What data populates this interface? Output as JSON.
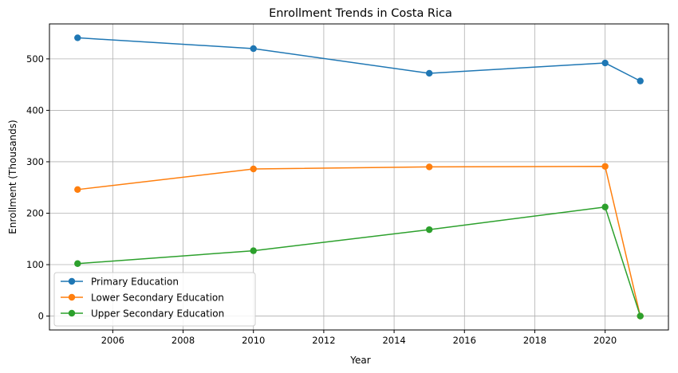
{
  "chart_data": {
    "type": "line",
    "title": "Enrollment Trends in Costa Rica",
    "xlabel": "Year",
    "ylabel": "Enrollment (Thousands)",
    "xlim": [
      2004.2,
      2021.8
    ],
    "ylim": [
      -27,
      568
    ],
    "xticks": [
      2006,
      2008,
      2010,
      2012,
      2014,
      2016,
      2018,
      2020
    ],
    "yticks": [
      0,
      100,
      200,
      300,
      400,
      500
    ],
    "grid": true,
    "legend_position": "lower-left",
    "x": [
      2005,
      2010,
      2015,
      2020,
      2021
    ],
    "series": [
      {
        "name": "Primary Education",
        "color": "#1f77b4",
        "values": [
          541,
          520,
          472,
          492,
          457
        ]
      },
      {
        "name": "Lower Secondary Education",
        "color": "#ff7f0e",
        "values": [
          246,
          286,
          290,
          291,
          0
        ]
      },
      {
        "name": "Upper Secondary Education",
        "color": "#2ca02c",
        "values": [
          102,
          127,
          168,
          212,
          0
        ]
      }
    ]
  }
}
